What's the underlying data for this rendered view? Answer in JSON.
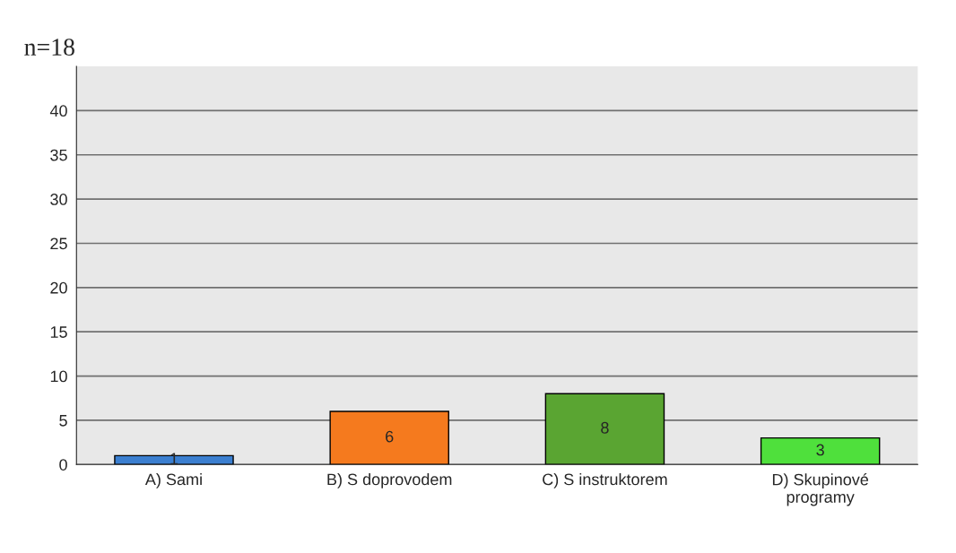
{
  "chart_data": {
    "type": "bar",
    "categories": [
      "A) Sami",
      "B) S doprovodem",
      "C) S instruktorem",
      "D) Skupinové\nprogramy"
    ],
    "values": [
      1,
      6,
      8,
      3
    ],
    "colors": [
      "#3b7fd0",
      "#f57a1e",
      "#5aa532",
      "#4fe03c"
    ],
    "ylim": [
      0,
      45
    ],
    "yticks": [
      0,
      5,
      10,
      15,
      20,
      25,
      30,
      35,
      40
    ],
    "grid": "y",
    "data_labels": true,
    "annotations": [
      "n=18"
    ]
  }
}
